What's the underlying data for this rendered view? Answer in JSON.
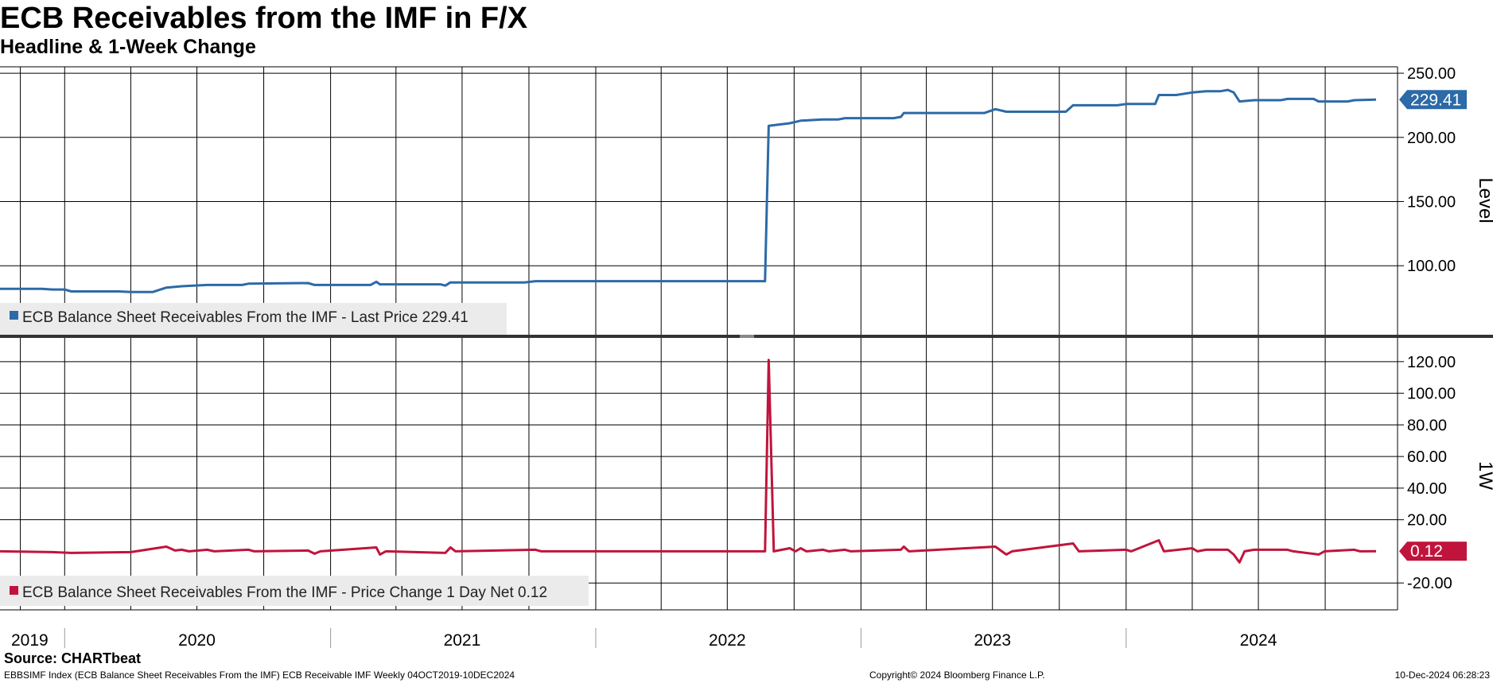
{
  "title": "ECB Receivables from the IMF in F/X",
  "subtitle": "Headline & 1-Week Change",
  "source": "Source: CHARTbeat",
  "footer": {
    "left": "EBBSIMF Index (ECB Balance Sheet Receivables From the IMF) ECB Receivable IMF  Weekly 04OCT2019-10DEC2024",
    "center": "Copyright© 2024 Bloomberg Finance L.P.",
    "right": "10-Dec-2024 06:28:23"
  },
  "chart_data": [
    {
      "type": "line",
      "ylabel": "Level",
      "ylim": [
        45,
        255
      ],
      "yticks": [
        "250.00",
        "200.00",
        "150.00",
        "100.00"
      ],
      "x_labels": [
        "2019",
        "2020",
        "2021",
        "2022",
        "2023",
        "2024"
      ],
      "grid": true,
      "legend": "bottom-left",
      "last_value_label": "229.41",
      "color": "#2c6aa8",
      "series": [
        {
          "name": "ECB Balance Sheet Receivables From the IMF - Last Price 229.41",
          "points": [
            [
              "2019-10-04",
              82
            ],
            [
              "2019-12-01",
              82
            ],
            [
              "2019-12-15",
              81.5
            ],
            [
              "2020-01-01",
              81.5
            ],
            [
              "2020-01-10",
              80
            ],
            [
              "2020-03-15",
              80
            ],
            [
              "2020-04-01",
              79.5
            ],
            [
              "2020-05-01",
              79.5
            ],
            [
              "2020-05-20",
              83
            ],
            [
              "2020-06-10",
              84
            ],
            [
              "2020-07-15",
              85
            ],
            [
              "2020-09-01",
              85
            ],
            [
              "2020-09-10",
              86
            ],
            [
              "2020-12-01",
              86.5
            ],
            [
              "2020-12-10",
              85
            ],
            [
              "2021-02-25",
              85
            ],
            [
              "2021-03-05",
              87.5
            ],
            [
              "2021-03-10",
              85.5
            ],
            [
              "2021-06-01",
              85.5
            ],
            [
              "2021-06-08",
              84.5
            ],
            [
              "2021-06-15",
              87
            ],
            [
              "2021-09-25",
              87
            ],
            [
              "2021-10-10",
              88
            ],
            [
              "2022-01-01",
              88
            ],
            [
              "2022-02-01",
              88
            ],
            [
              "2022-08-22",
              88
            ],
            [
              "2022-08-27",
              209
            ],
            [
              "2022-09-25",
              211
            ],
            [
              "2022-10-10",
              213
            ],
            [
              "2022-11-10",
              214
            ],
            [
              "2022-12-01",
              214
            ],
            [
              "2022-12-10",
              215
            ],
            [
              "2023-02-15",
              215
            ],
            [
              "2023-02-25",
              216
            ],
            [
              "2023-03-01",
              219
            ],
            [
              "2023-06-20",
              219
            ],
            [
              "2023-07-05",
              222
            ],
            [
              "2023-07-20",
              220
            ],
            [
              "2023-10-10",
              220
            ],
            [
              "2023-10-20",
              225
            ],
            [
              "2023-12-20",
              225
            ],
            [
              "2024-01-01",
              226
            ],
            [
              "2024-02-10",
              226
            ],
            [
              "2024-02-15",
              233
            ],
            [
              "2024-03-10",
              233
            ],
            [
              "2024-04-01",
              235
            ],
            [
              "2024-04-20",
              236
            ],
            [
              "2024-05-10",
              236
            ],
            [
              "2024-05-20",
              237
            ],
            [
              "2024-05-28",
              235
            ],
            [
              "2024-06-05",
              228
            ],
            [
              "2024-06-25",
              229
            ],
            [
              "2024-08-01",
              229
            ],
            [
              "2024-08-10",
              230
            ],
            [
              "2024-09-15",
              230
            ],
            [
              "2024-09-22",
              228
            ],
            [
              "2024-11-01",
              228
            ],
            [
              "2024-11-10",
              229
            ],
            [
              "2024-12-10",
              229.41
            ]
          ]
        }
      ]
    },
    {
      "type": "line",
      "ylabel": "1W",
      "ylim": [
        -37,
        135
      ],
      "yticks": [
        "120.00",
        "100.00",
        "80.00",
        "60.00",
        "40.00",
        "20.00",
        "-20.00"
      ],
      "x_labels": [
        "2019",
        "2020",
        "2021",
        "2022",
        "2023",
        "2024"
      ],
      "grid": true,
      "legend": "bottom-left",
      "last_value_label": "0.12",
      "color": "#c0143c",
      "series": [
        {
          "name": "ECB Balance Sheet Receivables From the IMF - Price Change 1 Day Net 0.12",
          "points": [
            [
              "2019-10-04",
              0
            ],
            [
              "2019-12-15",
              -0.5
            ],
            [
              "2020-01-10",
              -1
            ],
            [
              "2020-04-01",
              -0.5
            ],
            [
              "2020-05-20",
              3
            ],
            [
              "2020-06-01",
              0.5
            ],
            [
              "2020-06-10",
              1
            ],
            [
              "2020-06-20",
              0
            ],
            [
              "2020-07-15",
              1
            ],
            [
              "2020-07-25",
              0
            ],
            [
              "2020-09-10",
              1
            ],
            [
              "2020-09-18",
              0
            ],
            [
              "2020-12-01",
              0.5
            ],
            [
              "2020-12-10",
              -1.5
            ],
            [
              "2020-12-18",
              0
            ],
            [
              "2021-03-05",
              2.5
            ],
            [
              "2021-03-10",
              -2
            ],
            [
              "2021-03-18",
              0
            ],
            [
              "2021-06-08",
              -1
            ],
            [
              "2021-06-15",
              2.5
            ],
            [
              "2021-06-22",
              0
            ],
            [
              "2021-10-10",
              1
            ],
            [
              "2021-10-18",
              0
            ],
            [
              "2022-08-22",
              0
            ],
            [
              "2022-08-27",
              121
            ],
            [
              "2022-09-03",
              0
            ],
            [
              "2022-09-25",
              2
            ],
            [
              "2022-10-03",
              0
            ],
            [
              "2022-10-10",
              2
            ],
            [
              "2022-10-18",
              0
            ],
            [
              "2022-11-10",
              1
            ],
            [
              "2022-11-18",
              0
            ],
            [
              "2022-12-10",
              1
            ],
            [
              "2022-12-18",
              0
            ],
            [
              "2023-02-25",
              1
            ],
            [
              "2023-03-01",
              3
            ],
            [
              "2023-03-08",
              0
            ],
            [
              "2023-07-05",
              3
            ],
            [
              "2023-07-20",
              -2
            ],
            [
              "2023-07-28",
              0
            ],
            [
              "2023-10-20",
              5
            ],
            [
              "2023-10-28",
              0
            ],
            [
              "2024-01-01",
              1
            ],
            [
              "2024-01-08",
              0
            ],
            [
              "2024-02-15",
              7
            ],
            [
              "2024-02-22",
              0
            ],
            [
              "2024-04-01",
              2
            ],
            [
              "2024-04-08",
              0
            ],
            [
              "2024-04-20",
              1
            ],
            [
              "2024-05-20",
              1
            ],
            [
              "2024-05-28",
              -2
            ],
            [
              "2024-06-05",
              -7
            ],
            [
              "2024-06-12",
              0
            ],
            [
              "2024-06-25",
              1
            ],
            [
              "2024-08-10",
              1
            ],
            [
              "2024-08-18",
              0
            ],
            [
              "2024-09-22",
              -2
            ],
            [
              "2024-09-30",
              0
            ],
            [
              "2024-11-10",
              1
            ],
            [
              "2024-11-18",
              0
            ],
            [
              "2024-12-10",
              0.12
            ]
          ]
        }
      ]
    }
  ]
}
